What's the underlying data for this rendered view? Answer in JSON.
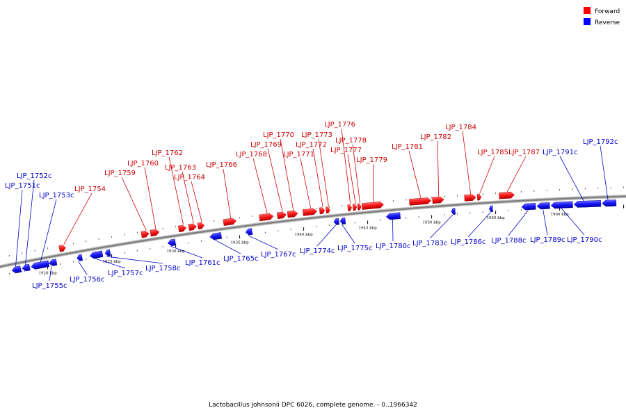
{
  "legend": {
    "forward": {
      "label": "Forward",
      "color": "#ff0000"
    },
    "reverse": {
      "label": "Reverse",
      "color": "#0000ff"
    }
  },
  "colors": {
    "forward_label": "#cc0000",
    "reverse_label": "#0000cc",
    "axis": "#808080"
  },
  "caption": "Lactobacillus johnsonii DPC 6026, complete genome. - 0..1966342",
  "map": {
    "view_start_kbp": 1916,
    "view_end_kbp": 1966
  },
  "ticks": [
    {
      "kbp": 1920,
      "label": "1920 kbp"
    },
    {
      "kbp": 1925,
      "label": "1925 kbp"
    },
    {
      "kbp": 1930,
      "label": "1930 kbp"
    },
    {
      "kbp": 1935,
      "label": "1935 kbp"
    },
    {
      "kbp": 1940,
      "label": "1940 kbp"
    },
    {
      "kbp": 1945,
      "label": "1945 kbp"
    },
    {
      "kbp": 1950,
      "label": "1950 kbp"
    },
    {
      "kbp": 1955,
      "label": "1955 kbp"
    },
    {
      "kbp": 1960,
      "label": "1960 kbp"
    }
  ],
  "genes": [
    {
      "name": "LJP_1751c",
      "strand": "reverse",
      "start": 1917.1,
      "end": 1917.8
    },
    {
      "name": "LJP_1752c",
      "strand": "reverse",
      "start": 1917.9,
      "end": 1918.5
    },
    {
      "name": "LJP_1753c",
      "strand": "reverse",
      "start": 1918.6,
      "end": 1920.0
    },
    {
      "name": "LJP_1754",
      "strand": "forward",
      "start": 1921.0,
      "end": 1921.5
    },
    {
      "name": "LJP_1755c",
      "strand": "reverse",
      "start": 1920.0,
      "end": 1920.6
    },
    {
      "name": "LJP_1756c",
      "strand": "reverse",
      "start": 1922.2,
      "end": 1922.6
    },
    {
      "name": "LJP_1757c",
      "strand": "reverse",
      "start": 1923.2,
      "end": 1924.2
    },
    {
      "name": "LJP_1758c",
      "strand": "reverse",
      "start": 1924.4,
      "end": 1924.8
    },
    {
      "name": "LJP_1759",
      "strand": "forward",
      "start": 1927.4,
      "end": 1928.0
    },
    {
      "name": "LJP_1760",
      "strand": "forward",
      "start": 1928.1,
      "end": 1928.8
    },
    {
      "name": "LJP_1761c",
      "strand": "reverse",
      "start": 1929.3,
      "end": 1929.9
    },
    {
      "name": "LJP_1762",
      "strand": "forward",
      "start": 1930.3,
      "end": 1930.9
    },
    {
      "name": "LJP_1763",
      "strand": "forward",
      "start": 1931.1,
      "end": 1931.7
    },
    {
      "name": "LJP_1764",
      "strand": "forward",
      "start": 1931.8,
      "end": 1932.3
    },
    {
      "name": "LJP_1765c",
      "strand": "reverse",
      "start": 1932.6,
      "end": 1933.5
    },
    {
      "name": "LJP_1766",
      "strand": "forward",
      "start": 1933.8,
      "end": 1934.8
    },
    {
      "name": "LJP_1767c",
      "strand": "reverse",
      "start": 1935.4,
      "end": 1935.9
    },
    {
      "name": "LJP_1768",
      "strand": "forward",
      "start": 1936.6,
      "end": 1937.7
    },
    {
      "name": "LJP_1769",
      "strand": "forward",
      "start": 1938.0,
      "end": 1938.7
    },
    {
      "name": "LJP_1770",
      "strand": "forward",
      "start": 1938.8,
      "end": 1939.6
    },
    {
      "name": "LJP_1771",
      "strand": "forward",
      "start": 1940.0,
      "end": 1941.1
    },
    {
      "name": "LJP_1772",
      "strand": "forward",
      "start": 1941.3,
      "end": 1941.7
    },
    {
      "name": "LJP_1773",
      "strand": "forward",
      "start": 1941.8,
      "end": 1942.1
    },
    {
      "name": "LJP_1774c",
      "strand": "reverse",
      "start": 1942.3,
      "end": 1942.7
    },
    {
      "name": "LJP_1775c",
      "strand": "reverse",
      "start": 1942.8,
      "end": 1943.2
    },
    {
      "name": "LJP_1776",
      "strand": "forward",
      "start": 1943.5,
      "end": 1943.8
    },
    {
      "name": "LJP_1777",
      "strand": "forward",
      "start": 1943.9,
      "end": 1944.2
    },
    {
      "name": "LJP_1778",
      "strand": "forward",
      "start": 1944.3,
      "end": 1944.5
    },
    {
      "name": "LJP_1779",
      "strand": "forward",
      "start": 1944.6,
      "end": 1946.3
    },
    {
      "name": "LJP_1780c",
      "strand": "reverse",
      "start": 1946.4,
      "end": 1947.5
    },
    {
      "name": "LJP_1781",
      "strand": "forward",
      "start": 1948.3,
      "end": 1950.0
    },
    {
      "name": "LJP_1782",
      "strand": "forward",
      "start": 1950.1,
      "end": 1951.0
    },
    {
      "name": "LJP_1783c",
      "strand": "reverse",
      "start": 1951.5,
      "end": 1951.8
    },
    {
      "name": "LJP_1784",
      "strand": "forward",
      "start": 1952.6,
      "end": 1953.5
    },
    {
      "name": "LJP_1785",
      "strand": "forward",
      "start": 1953.6,
      "end": 1953.9
    },
    {
      "name": "LJP_1786c",
      "strand": "reverse",
      "start": 1954.5,
      "end": 1954.7
    },
    {
      "name": "LJP_1787",
      "strand": "forward",
      "start": 1955.3,
      "end": 1956.5
    },
    {
      "name": "LJP_1788c",
      "strand": "reverse",
      "start": 1957.0,
      "end": 1958.1
    },
    {
      "name": "LJP_1789c",
      "strand": "reverse",
      "start": 1958.2,
      "end": 1959.2
    },
    {
      "name": "LJP_1790c",
      "strand": "reverse",
      "start": 1959.3,
      "end": 1961.0
    },
    {
      "name": "LJP_1791c",
      "strand": "reverse",
      "start": 1961.1,
      "end": 1963.2
    },
    {
      "name": "LJP_1792c",
      "strand": "reverse",
      "start": 1963.3,
      "end": 1964.4
    }
  ]
}
